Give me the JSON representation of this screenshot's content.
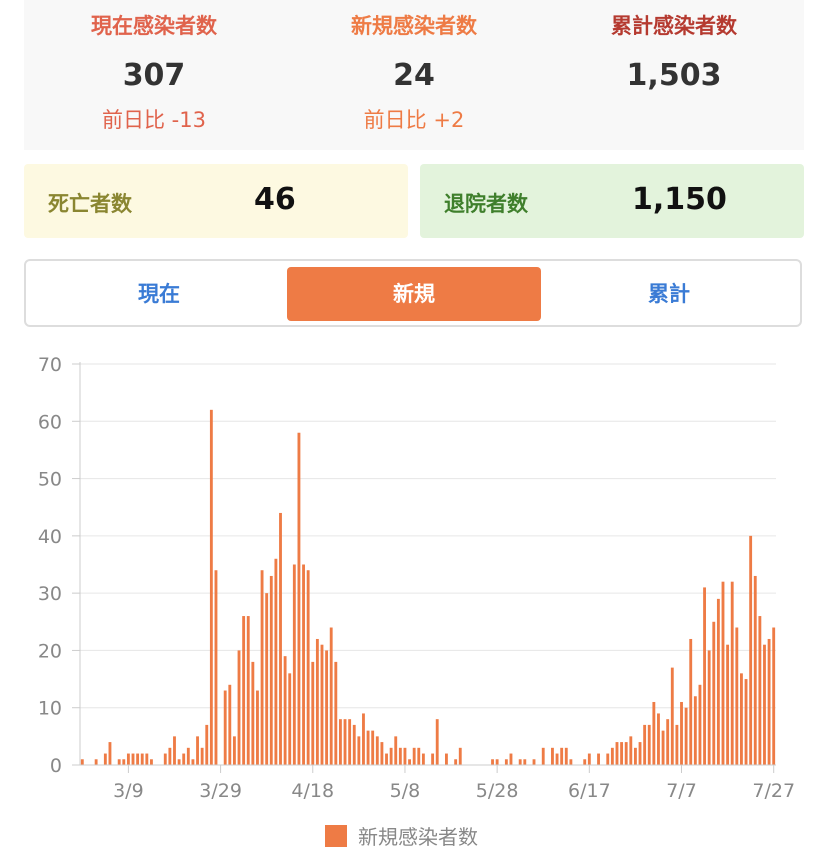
{
  "summary": {
    "current": {
      "label": "現在感染者数",
      "value": "307",
      "diff": "前日比 -13"
    },
    "new": {
      "label": "新規感染者数",
      "value": "24",
      "diff": "前日比 +2"
    },
    "total": {
      "label": "累計感染者数",
      "value": "1,503"
    }
  },
  "deaths": {
    "label": "死亡者数",
    "value": "46"
  },
  "discharged": {
    "label": "退院者数",
    "value": "1,150"
  },
  "tabs": [
    {
      "label": "現在",
      "active": false
    },
    {
      "label": "新規",
      "active": true
    },
    {
      "label": "累計",
      "active": false
    }
  ],
  "colors": {
    "current": "#e0634c",
    "new": "#ee7b45",
    "total": "#b53a30",
    "deaths_bg": "#fdf9e1",
    "deaths_text": "#8a8631",
    "discharged_bg": "#e3f3dc",
    "discharged_text": "#3f7f2c",
    "tab_text": "#3a7bd5",
    "bar": "#ee7b45"
  },
  "chart_data": {
    "type": "bar",
    "legend": "新規感染者数",
    "legend_position": "bottom",
    "grid": true,
    "ylim": [
      0,
      70
    ],
    "y_ticks": [
      "0",
      "10",
      "20",
      "30",
      "40",
      "50",
      "60",
      "70"
    ],
    "x_ticks": [
      "3/9",
      "3/29",
      "4/18",
      "5/8",
      "5/28",
      "6/17",
      "7/7",
      "7/27"
    ],
    "x_tick_day_index": [
      10,
      30,
      50,
      70,
      90,
      110,
      130,
      150
    ],
    "first_date": "2/28",
    "values": [
      1,
      0,
      0,
      1,
      0,
      2,
      4,
      0,
      1,
      1,
      2,
      2,
      2,
      2,
      2,
      1,
      0,
      0,
      2,
      3,
      5,
      1,
      2,
      3,
      1,
      5,
      3,
      7,
      62,
      34,
      0,
      13,
      14,
      5,
      20,
      26,
      26,
      18,
      13,
      34,
      30,
      33,
      36,
      44,
      19,
      16,
      35,
      58,
      35,
      34,
      18,
      22,
      21,
      20,
      24,
      18,
      8,
      8,
      8,
      7,
      5,
      9,
      6,
      6,
      5,
      4,
      2,
      3,
      5,
      3,
      3,
      1,
      3,
      3,
      2,
      0,
      2,
      8,
      0,
      2,
      0,
      1,
      3,
      0,
      0,
      0,
      0,
      0,
      0,
      1,
      1,
      0,
      1,
      2,
      0,
      1,
      1,
      0,
      1,
      0,
      3,
      0,
      3,
      2,
      3,
      3,
      1,
      0,
      0,
      1,
      2,
      0,
      2,
      0,
      2,
      3,
      4,
      4,
      4,
      5,
      3,
      4,
      7,
      7,
      11,
      9,
      6,
      8,
      17,
      7,
      11,
      10,
      22,
      12,
      14,
      31,
      20,
      25,
      29,
      32,
      21,
      32,
      24,
      16,
      15,
      40,
      33,
      26,
      21,
      22,
      24
    ]
  }
}
